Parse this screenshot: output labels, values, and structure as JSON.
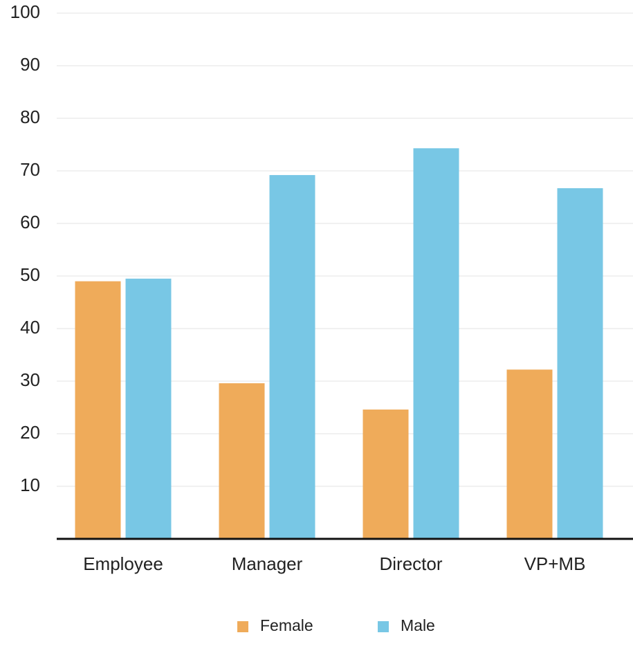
{
  "chart_data": {
    "type": "bar",
    "categories": [
      "Employee",
      "Manager",
      "Director",
      "VP+MB"
    ],
    "series": [
      {
        "name": "Female",
        "color": "#efab5a",
        "values": [
          49,
          29.6,
          24.6,
          32.2
        ]
      },
      {
        "name": "Male",
        "color": "#78c7e5",
        "values": [
          49.5,
          69.2,
          74.3,
          66.7
        ]
      }
    ],
    "ylim": [
      0,
      100
    ],
    "yticks": [
      10,
      20,
      30,
      40,
      50,
      60,
      70,
      80,
      90,
      100
    ],
    "grid": true,
    "legend": "bottom"
  }
}
